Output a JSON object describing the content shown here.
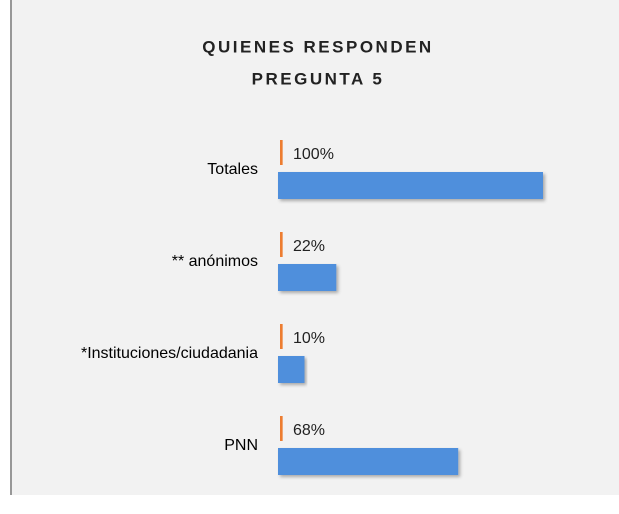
{
  "chart_data": {
    "type": "hbar",
    "title_lines": [
      "QUIENES RESPONDEN",
      "PREGUNTA 5"
    ],
    "categories": [
      "Totales",
      "** anónimos",
      "*Instituciones/ciudadania",
      "PNN"
    ],
    "series": [
      {
        "color": "#ed7d31",
        "values": [
          1,
          1,
          1,
          1
        ]
      },
      {
        "color": "#4f8fdc",
        "values": [
          100,
          22,
          10,
          68
        ],
        "value_labels": [
          "100%",
          "22%",
          "10%",
          "68%"
        ]
      }
    ],
    "xlim": [
      0,
      100
    ]
  }
}
